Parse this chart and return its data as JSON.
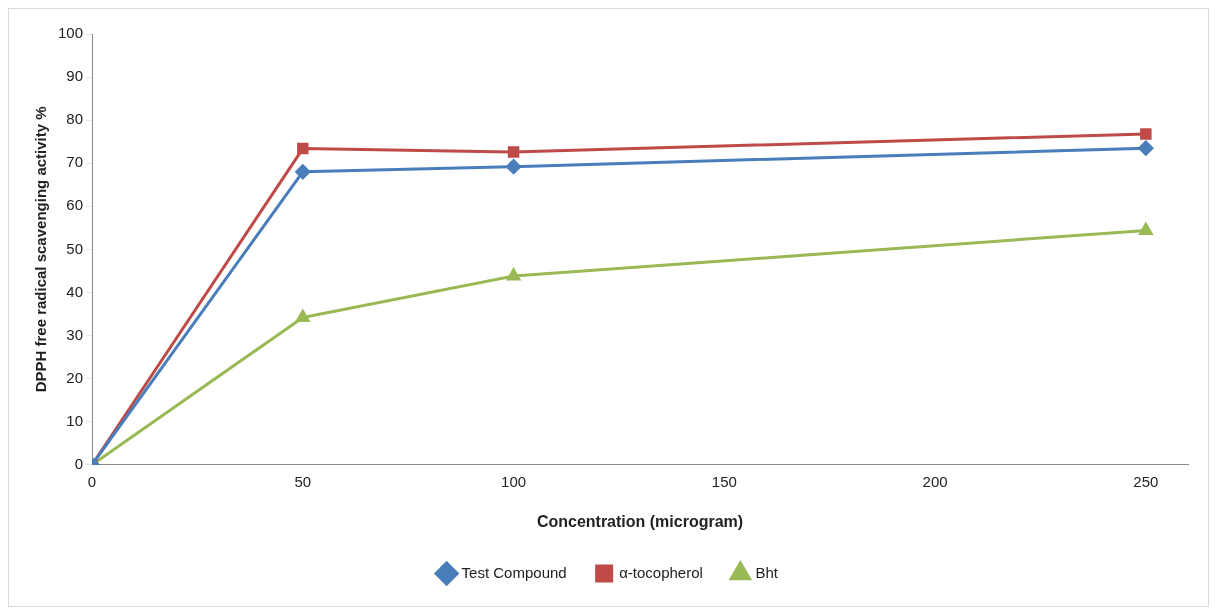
{
  "chart_data": {
    "type": "line",
    "xlabel": "Concentration (microgram)",
    "ylabel": "DPPH free radical scavenging activity %",
    "x": [
      0,
      50,
      100,
      250
    ],
    "xlim": [
      0,
      260
    ],
    "xticks": [
      0,
      50,
      100,
      150,
      200,
      250
    ],
    "ylim": [
      0,
      100
    ],
    "yticks": [
      0,
      10,
      20,
      30,
      40,
      50,
      60,
      70,
      80,
      90,
      100
    ],
    "grid": false,
    "legend": "bottom",
    "line_style": "solid",
    "series": [
      {
        "name": "Test Compound",
        "color": "#4a7ebb",
        "marker": "diamond",
        "values": [
          0,
          68.0,
          69.2,
          73.5
        ]
      },
      {
        "name": "α-tocopherol",
        "color": "#be4b48",
        "marker": "square",
        "values": [
          0,
          73.4,
          72.6,
          76.8
        ]
      },
      {
        "name": "Bht",
        "color": "#98b954",
        "marker": "triangle",
        "values": [
          0,
          34.2,
          43.8,
          54.4
        ]
      }
    ]
  }
}
